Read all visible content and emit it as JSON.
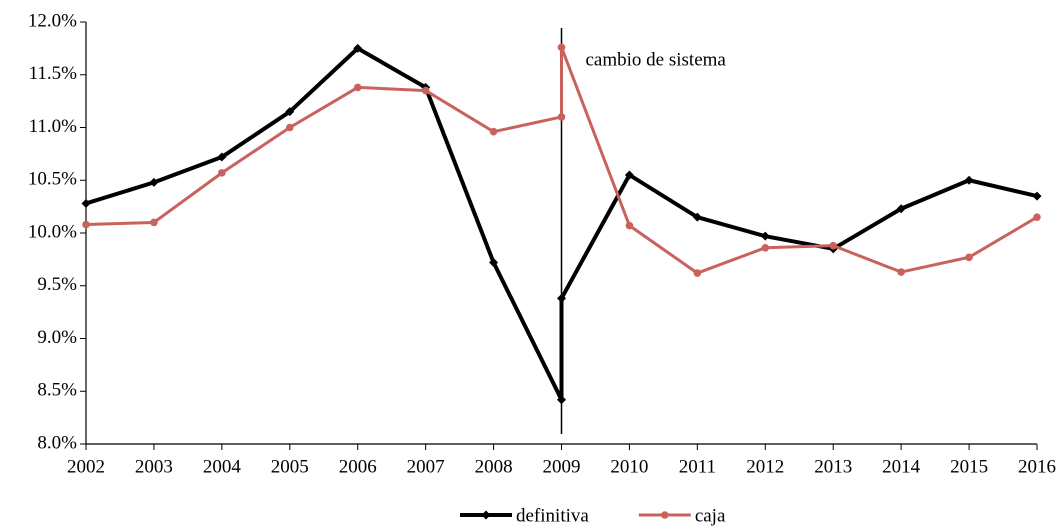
{
  "chart_data": {
    "type": "line",
    "x": [
      2002,
      2003,
      2004,
      2005,
      2006,
      2007,
      2008,
      2009,
      2009,
      2010,
      2011,
      2012,
      2013,
      2014,
      2015,
      2016
    ],
    "series": [
      {
        "name": "definitiva",
        "color": "#000000",
        "marker": "diamond",
        "values": [
          10.28,
          10.48,
          10.72,
          11.15,
          11.75,
          11.38,
          9.72,
          8.42,
          9.38,
          10.55,
          10.15,
          9.97,
          9.85,
          10.23,
          10.5,
          10.35
        ]
      },
      {
        "name": "caja",
        "color": "#c9625c",
        "marker": "circle",
        "values": [
          10.08,
          10.1,
          10.57,
          11.0,
          11.38,
          11.35,
          10.96,
          11.1,
          11.76,
          10.07,
          9.62,
          9.86,
          9.88,
          9.63,
          9.77,
          10.15
        ]
      }
    ],
    "annotation": {
      "text": "cambio de sistema",
      "x": 2009
    },
    "xlim": [
      2002,
      2016
    ],
    "xticks": [
      2002,
      2003,
      2004,
      2005,
      2006,
      2007,
      2008,
      2009,
      2010,
      2011,
      2012,
      2013,
      2014,
      2015,
      2016
    ],
    "ylim": [
      8,
      12
    ],
    "yticks": [
      {
        "value": 8,
        "label": "8.0%"
      },
      {
        "value": 8.5,
        "label": "8.5%"
      },
      {
        "value": 9,
        "label": "9.0%"
      },
      {
        "value": 9.5,
        "label": "9.5%"
      },
      {
        "value": 10,
        "label": "10.0%"
      },
      {
        "value": 10.5,
        "label": "10.5%"
      },
      {
        "value": 11,
        "label": "11.0%"
      },
      {
        "value": 11.5,
        "label": "11.5%"
      },
      {
        "value": 12,
        "label": "12.0%"
      }
    ],
    "grid": false,
    "legend": "bottom"
  }
}
